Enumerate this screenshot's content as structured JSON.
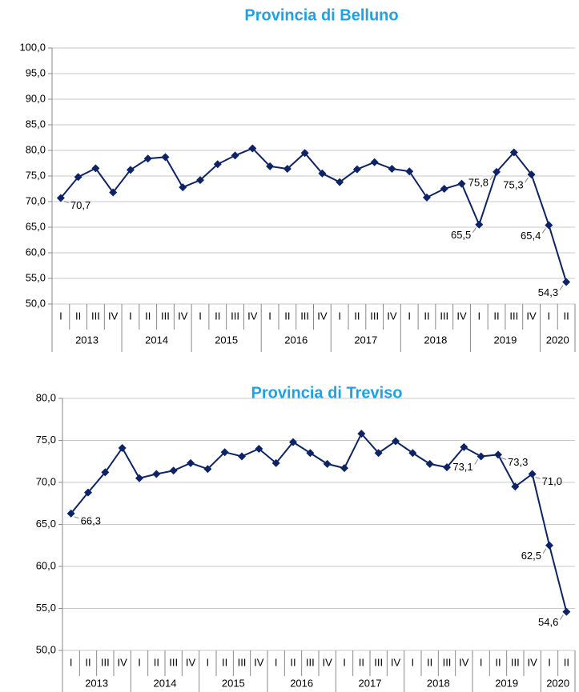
{
  "chart_data": [
    {
      "type": "line",
      "title": "Provincia di Belluno",
      "groups": [
        {
          "label": "2013",
          "categories": [
            "I",
            "II",
            "III",
            "IV"
          ]
        },
        {
          "label": "2014",
          "categories": [
            "I",
            "II",
            "III",
            "IV"
          ]
        },
        {
          "label": "2015",
          "categories": [
            "I",
            "II",
            "III",
            "IV"
          ]
        },
        {
          "label": "2016",
          "categories": [
            "I",
            "II",
            "III",
            "IV"
          ]
        },
        {
          "label": "2017",
          "categories": [
            "I",
            "II",
            "III",
            "IV"
          ]
        },
        {
          "label": "2018",
          "categories": [
            "I",
            "II",
            "III",
            "IV"
          ]
        },
        {
          "label": "2019",
          "categories": [
            "I",
            "II",
            "III",
            "IV"
          ]
        },
        {
          "label": "2020",
          "categories": [
            "I",
            "II"
          ]
        }
      ],
      "values": [
        70.7,
        74.8,
        76.5,
        71.8,
        76.2,
        78.4,
        78.7,
        72.8,
        74.2,
        77.3,
        79.0,
        80.4,
        76.9,
        76.4,
        79.5,
        75.5,
        73.8,
        76.3,
        77.7,
        76.4,
        75.9,
        70.8,
        72.5,
        73.5,
        65.5,
        75.8,
        79.6,
        75.3,
        65.4,
        54.3
      ],
      "value_labels": [
        "70,7",
        null,
        null,
        null,
        null,
        null,
        null,
        null,
        null,
        null,
        null,
        null,
        null,
        null,
        null,
        null,
        null,
        null,
        null,
        null,
        null,
        null,
        null,
        null,
        "65,5",
        "75,8",
        null,
        "75,3",
        "65,4",
        "54,3"
      ],
      "color": "#0d2366",
      "ylim": [
        50,
        100
      ],
      "yticks": [
        {
          "value": 50,
          "label": "50,0"
        },
        {
          "value": 55,
          "label": "55,0"
        },
        {
          "value": 60,
          "label": "60,0"
        },
        {
          "value": 65,
          "label": "65,0"
        },
        {
          "value": 70,
          "label": "70,0"
        },
        {
          "value": 75,
          "label": "75,0"
        },
        {
          "value": 80,
          "label": "80,0"
        },
        {
          "value": 85,
          "label": "85,0"
        },
        {
          "value": 90,
          "label": "90,0"
        },
        {
          "value": 95,
          "label": "95,0"
        },
        {
          "value": 100,
          "label": "100,0"
        }
      ],
      "grid": true
    },
    {
      "type": "line",
      "title": "Provincia di Treviso",
      "groups": [
        {
          "label": "2013",
          "categories": [
            "I",
            "II",
            "III",
            "IV"
          ]
        },
        {
          "label": "2014",
          "categories": [
            "I",
            "II",
            "III",
            "IV"
          ]
        },
        {
          "label": "2015",
          "categories": [
            "I",
            "II",
            "III",
            "IV"
          ]
        },
        {
          "label": "2016",
          "categories": [
            "I",
            "II",
            "III",
            "IV"
          ]
        },
        {
          "label": "2017",
          "categories": [
            "I",
            "II",
            "III",
            "IV"
          ]
        },
        {
          "label": "2018",
          "categories": [
            "I",
            "II",
            "III",
            "IV"
          ]
        },
        {
          "label": "2019",
          "categories": [
            "I",
            "II",
            "III",
            "IV"
          ]
        },
        {
          "label": "2020",
          "categories": [
            "I",
            "II"
          ]
        }
      ],
      "values": [
        66.3,
        68.8,
        71.2,
        74.1,
        70.5,
        71.0,
        71.4,
        72.3,
        71.6,
        73.6,
        73.1,
        74.0,
        72.3,
        74.8,
        73.5,
        72.2,
        71.7,
        75.8,
        73.5,
        74.9,
        73.5,
        72.2,
        71.8,
        74.2,
        73.1,
        73.3,
        69.5,
        71.0,
        62.5,
        54.6
      ],
      "value_labels": [
        "66,3",
        null,
        null,
        null,
        null,
        null,
        null,
        null,
        null,
        null,
        null,
        null,
        null,
        null,
        null,
        null,
        null,
        null,
        null,
        null,
        null,
        null,
        null,
        null,
        "73,1",
        "73,3",
        null,
        "71,0",
        "62,5",
        "54,6"
      ],
      "color": "#0d2366",
      "ylim": [
        50,
        80
      ],
      "yticks": [
        {
          "value": 50,
          "label": "50,0"
        },
        {
          "value": 55,
          "label": "55,0"
        },
        {
          "value": 60,
          "label": "60,0"
        },
        {
          "value": 65,
          "label": "65,0"
        },
        {
          "value": 70,
          "label": "70,0"
        },
        {
          "value": 75,
          "label": "75,0"
        },
        {
          "value": 80,
          "label": "80,0"
        }
      ],
      "grid": true
    }
  ]
}
